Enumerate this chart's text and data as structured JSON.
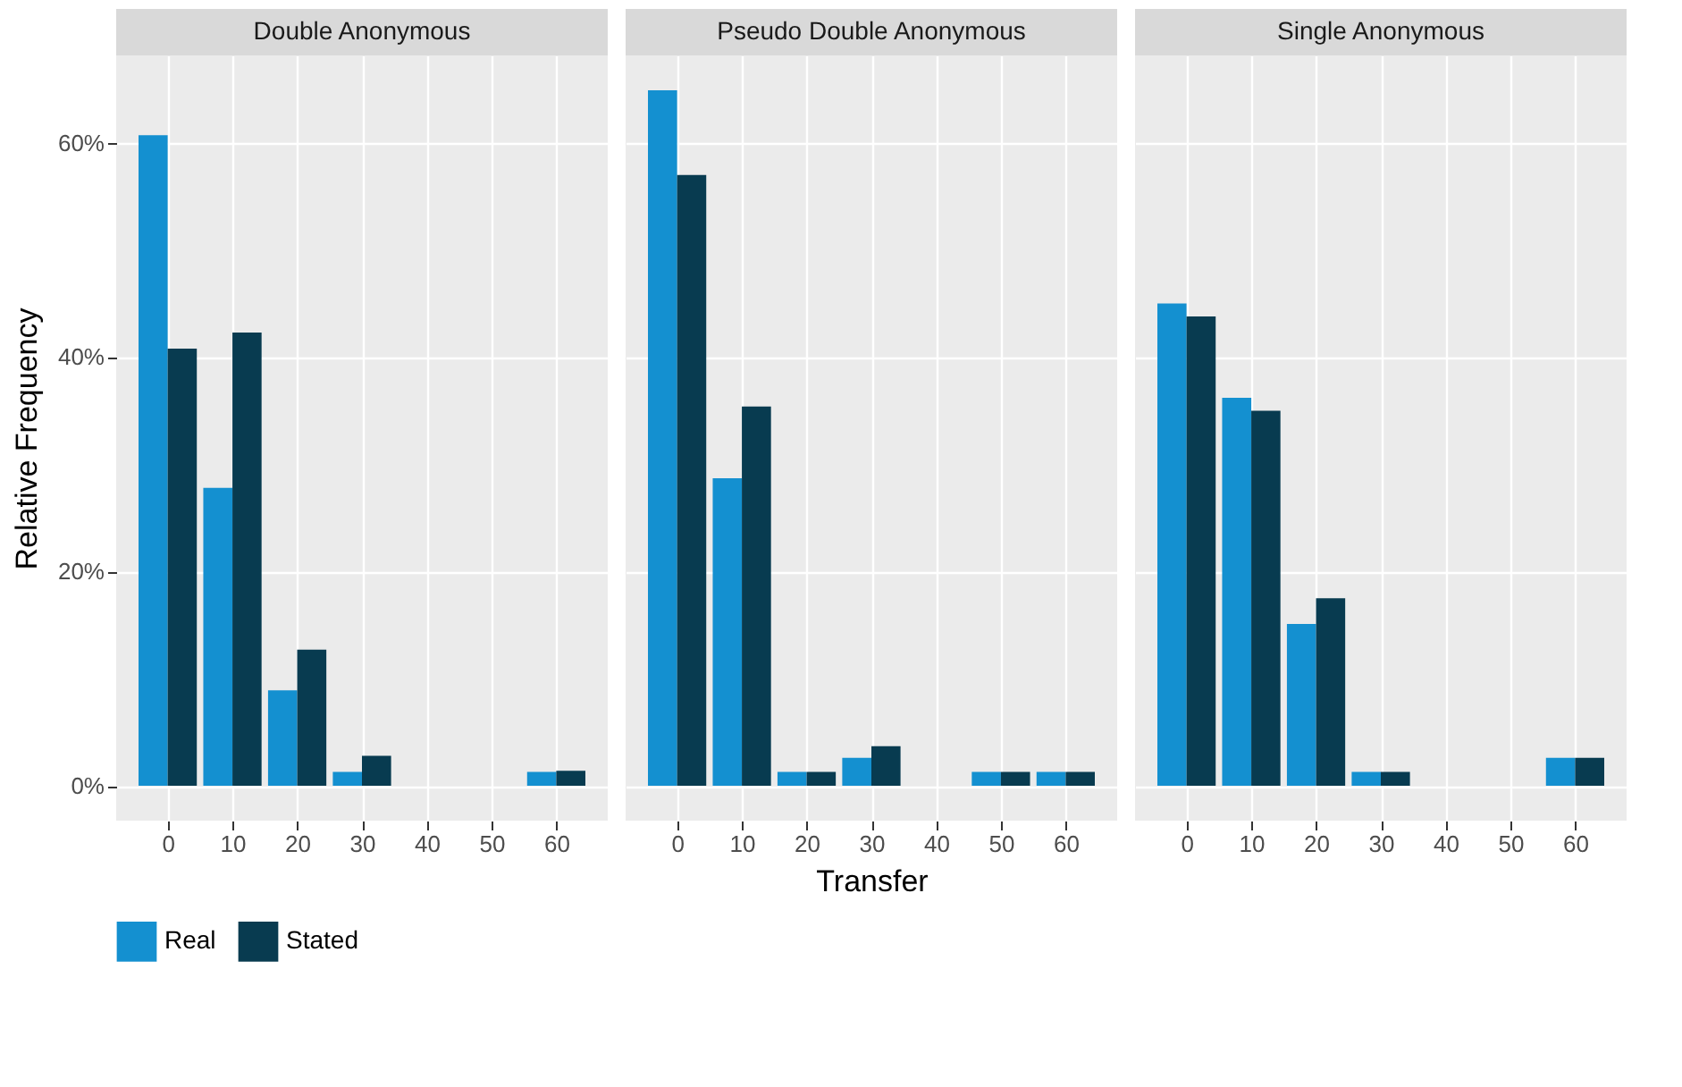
{
  "chart_data": [
    {
      "type": "bar",
      "title": "Double Anonymous",
      "ylabel": "Relative Frequency",
      "x": [
        0,
        10,
        20,
        30,
        40,
        50,
        60
      ],
      "series": [
        {
          "name": "Real",
          "color": "#1490d0",
          "values": [
            60.7,
            27.8,
            8.9,
            1.3,
            null,
            null,
            1.3
          ]
        },
        {
          "name": "Stated",
          "color": "#083b50",
          "values": [
            40.8,
            42.3,
            12.7,
            2.8,
            null,
            null,
            1.4
          ]
        }
      ],
      "xlim": [
        -7.95,
        67.95
      ],
      "xticks": [
        0,
        10,
        20,
        30,
        40,
        50,
        60
      ],
      "ylim": [
        -3.25,
        68.15
      ],
      "yticks": [
        {
          "value": 0,
          "label": "0%"
        },
        {
          "value": 20,
          "label": "20%"
        },
        {
          "value": 40,
          "label": "40%"
        },
        {
          "value": 60,
          "label": "60%"
        }
      ],
      "grid": true,
      "legend": "bottom"
    },
    {
      "type": "bar",
      "title": "Pseudo Double Anonymous",
      "xlabel": "Transfer",
      "x": [
        0,
        10,
        20,
        30,
        40,
        50,
        60
      ],
      "series": [
        {
          "name": "Real",
          "color": "#1490d0",
          "values": [
            64.9,
            28.7,
            1.3,
            2.6,
            null,
            1.3,
            1.3
          ]
        },
        {
          "name": "Stated",
          "color": "#083b50",
          "values": [
            57.0,
            35.4,
            1.3,
            3.7,
            null,
            1.3,
            1.3
          ]
        }
      ],
      "xlim": [
        -7.95,
        67.95
      ],
      "xticks": [
        0,
        10,
        20,
        30,
        40,
        50,
        60
      ],
      "ylim": [
        -3.25,
        68.15
      ],
      "yticks": [
        0,
        20,
        40,
        60
      ],
      "grid": true,
      "tick_labels": "x"
    },
    {
      "type": "bar",
      "title": "Single Anonymous",
      "x": [
        0,
        10,
        20,
        30,
        40,
        50,
        60
      ],
      "series": [
        {
          "name": "Real",
          "color": "#1490d0",
          "values": [
            45.0,
            36.2,
            15.1,
            1.3,
            null,
            null,
            2.6
          ]
        },
        {
          "name": "Stated",
          "color": "#083b50",
          "values": [
            43.8,
            35.0,
            17.5,
            1.3,
            null,
            null,
            2.6
          ]
        }
      ],
      "xlim": [
        -7.95,
        67.95
      ],
      "xticks": [
        0,
        10,
        20,
        30,
        40,
        50,
        60
      ],
      "ylim": [
        -3.25,
        68.15
      ],
      "yticks": [
        0,
        20,
        40,
        60
      ],
      "grid": true,
      "tick_labels": "x"
    }
  ]
}
